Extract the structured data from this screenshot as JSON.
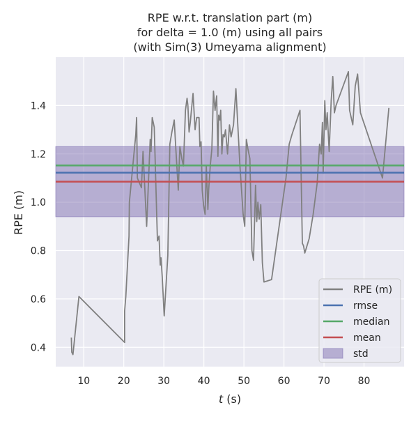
{
  "chart_data": {
    "type": "line",
    "title_lines": [
      "RPE w.r.t. translation part (m)",
      "for delta = 1.0 (m) using all pairs",
      "(with Sim(3) Umeyama alignment)"
    ],
    "xlabel_var": "t",
    "xlabel_unit": " (s)",
    "ylabel": "RPE (m)",
    "xlim": [
      3,
      90
    ],
    "ylim": [
      0.32,
      1.6
    ],
    "xticks": [
      10,
      20,
      30,
      40,
      50,
      60,
      70,
      80
    ],
    "yticks": [
      0.4,
      0.6,
      0.8,
      1.0,
      1.2,
      1.4
    ],
    "ytick_labels": [
      "0.4",
      "0.6",
      "0.8",
      "1.0",
      "1.2",
      "1.4"
    ],
    "grid": true,
    "background": "#eaeaf2",
    "legend_position": "lower-right",
    "series": [
      {
        "name": "RPE (m)",
        "color": "#808080",
        "x": [
          6.9,
          7.0,
          7.3,
          8.8,
          20.2,
          20.2,
          20.5,
          21.3,
          21.4,
          23.0,
          23.2,
          23.4,
          24.4,
          24.8,
          25.7,
          26.6,
          26.8,
          27.1,
          27.6,
          28.4,
          28.8,
          29.1,
          29.3,
          29.6,
          30.1,
          31.0,
          31.5,
          32.0,
          32.6,
          33.0,
          33.6,
          34.0,
          34.5,
          34.9,
          35.4,
          35.8,
          36.0,
          36.3,
          36.6,
          37.3,
          37.8,
          38.2,
          38.8,
          39.0,
          39.3,
          39.6,
          39.9,
          40.3,
          40.6,
          41.0,
          41.2,
          41.6,
          42.0,
          42.4,
          42.8,
          43.2,
          43.5,
          43.7,
          44.0,
          44.2,
          44.5,
          44.8,
          45.1,
          45.4,
          45.9,
          46.4,
          46.8,
          47.4,
          48.0,
          49.0,
          49.8,
          50.2,
          50.6,
          51.0,
          51.5,
          52.0,
          52.4,
          52.9,
          53.2,
          53.5,
          53.8,
          54.2,
          54.6,
          55.0,
          56.9,
          60.5,
          61.3,
          62.0,
          64.0,
          64.6,
          64.9,
          65.2,
          65.4,
          66.3,
          67.3,
          68.3,
          68.9,
          69.3,
          69.6,
          69.8,
          70.2,
          70.5,
          70.8,
          71.3,
          71.8,
          72.2,
          72.6,
          73.0,
          76.1,
          76.4,
          77.2,
          77.8,
          78.4,
          79.1,
          84.6,
          86.2
        ],
        "y": [
          0.44,
          0.38,
          0.37,
          0.61,
          0.42,
          0.55,
          0.61,
          0.86,
          1.0,
          1.28,
          1.35,
          1.1,
          1.06,
          1.21,
          0.9,
          1.26,
          1.21,
          1.35,
          1.31,
          0.84,
          0.86,
          0.74,
          0.77,
          0.69,
          0.53,
          0.78,
          1.24,
          1.29,
          1.34,
          1.22,
          1.05,
          1.23,
          1.18,
          1.15,
          1.38,
          1.43,
          1.4,
          1.29,
          1.33,
          1.45,
          1.3,
          1.35,
          1.35,
          1.23,
          1.25,
          1.05,
          0.99,
          0.95,
          1.15,
          0.97,
          1.05,
          1.15,
          1.22,
          1.46,
          1.38,
          1.44,
          1.19,
          1.36,
          1.34,
          1.38,
          1.2,
          1.28,
          1.27,
          1.3,
          1.2,
          1.32,
          1.27,
          1.32,
          1.47,
          1.15,
          0.95,
          0.9,
          1.26,
          1.22,
          1.18,
          0.8,
          0.76,
          1.07,
          0.92,
          1.0,
          0.93,
          0.99,
          0.75,
          0.67,
          0.68,
          1.1,
          1.24,
          1.28,
          1.38,
          0.83,
          0.82,
          0.79,
          0.8,
          0.85,
          0.95,
          1.08,
          1.24,
          1.2,
          1.33,
          1.12,
          1.42,
          1.3,
          1.37,
          1.21,
          1.42,
          1.52,
          1.37,
          1.4,
          1.54,
          1.38,
          1.32,
          1.48,
          1.53,
          1.37,
          1.1,
          1.39
        ]
      },
      {
        "name": "rmse",
        "color": "#4c72b0",
        "value": 1.122
      },
      {
        "name": "median",
        "color": "#55a868",
        "value": 1.152
      },
      {
        "name": "mean",
        "color": "#c44e52",
        "value": 1.085
      },
      {
        "name": "std",
        "color": "#8172b2",
        "range": [
          0.94,
          1.23
        ]
      }
    ]
  }
}
